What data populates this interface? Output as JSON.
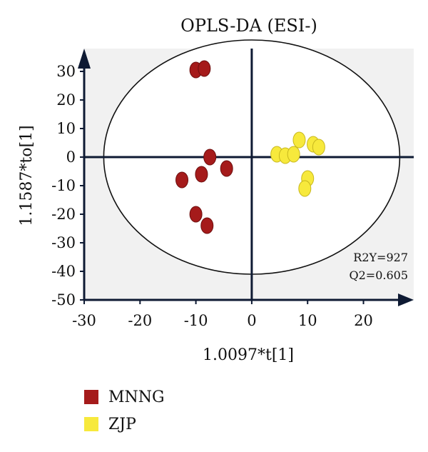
{
  "chart_data": {
    "type": "scatter",
    "title": "OPLS-DA (ESI-)",
    "xlabel": "1.0097*t[1]",
    "ylabel": "1.1587*to[1]",
    "xlim": [
      -30,
      29
    ],
    "ylim": [
      -50,
      38
    ],
    "x_ticks": [
      -30,
      -20,
      -10,
      0,
      10,
      20
    ],
    "y_ticks": [
      30,
      20,
      10,
      0,
      -10,
      -20,
      -30,
      -40,
      -50
    ],
    "grid": false,
    "ellipse": {
      "cx": 0,
      "cy": 0,
      "rx": 26.5,
      "ry": 41
    },
    "annotations": [
      "R2Y=927",
      "Q2=0.605"
    ],
    "series": [
      {
        "name": "MNNG",
        "color": "#a51b1b",
        "points": [
          [
            -10,
            30.5
          ],
          [
            -8.5,
            31
          ],
          [
            -7.5,
            0
          ],
          [
            -9,
            -6
          ],
          [
            -12.5,
            -8
          ],
          [
            -4.5,
            -4
          ],
          [
            -10,
            -20
          ],
          [
            -8,
            -24
          ]
        ]
      },
      {
        "name": "ZJP",
        "color": "#f7e93c",
        "points": [
          [
            4.5,
            1
          ],
          [
            6,
            0.5
          ],
          [
            7.5,
            1
          ],
          [
            8.5,
            6
          ],
          [
            11,
            4.5
          ],
          [
            12,
            3.5
          ],
          [
            10,
            -7.5
          ],
          [
            9.5,
            -11
          ]
        ]
      }
    ]
  }
}
